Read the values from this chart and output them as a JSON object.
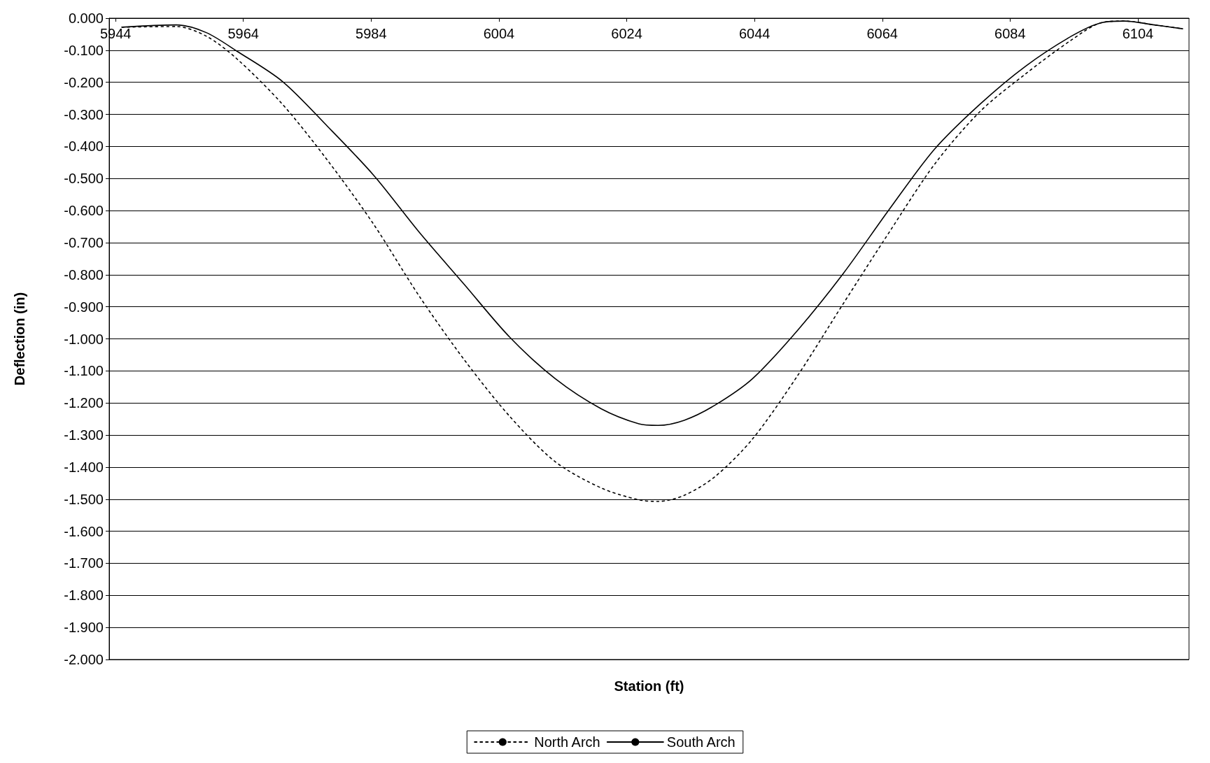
{
  "chart_data": {
    "type": "line",
    "xlabel": "Station (ft)",
    "ylabel": "Deflection (in)",
    "xlim": [
      5943,
      6112
    ],
    "xticks": [
      5944,
      5964,
      5984,
      6004,
      6024,
      6044,
      6064,
      6084,
      6104
    ],
    "ylim": [
      -2.0,
      0.0
    ],
    "yticks": [
      {
        "value": 0,
        "label": "0.000"
      },
      {
        "value": -0.1,
        "label": "-0.100"
      },
      {
        "value": -0.2,
        "label": "-0.200"
      },
      {
        "value": -0.3,
        "label": "-0.300"
      },
      {
        "value": -0.4,
        "label": "-0.400"
      },
      {
        "value": -0.5,
        "label": "-0.500"
      },
      {
        "value": -0.6,
        "label": "-0.600"
      },
      {
        "value": -0.7,
        "label": "-0.700"
      },
      {
        "value": -0.8,
        "label": "-0.800"
      },
      {
        "value": -0.9,
        "label": "-0.900"
      },
      {
        "value": -1.0,
        "label": "-1.000"
      },
      {
        "value": -1.1,
        "label": "-1.100"
      },
      {
        "value": -1.2,
        "label": "-1.200"
      },
      {
        "value": -1.3,
        "label": "-1.300"
      },
      {
        "value": -1.4,
        "label": "-1.400"
      },
      {
        "value": -1.5,
        "label": "-1.500"
      },
      {
        "value": -1.6,
        "label": "-1.600"
      },
      {
        "value": -1.7,
        "label": "-1.700"
      },
      {
        "value": -1.8,
        "label": "-1.800"
      },
      {
        "value": -1.9,
        "label": "-1.900"
      },
      {
        "value": -2.0,
        "label": "-2.000"
      }
    ],
    "grid": "y",
    "legend": "bottom",
    "marker": "none",
    "x": [
      5945,
      5953.5,
      5958.2,
      5963,
      5970.1,
      5977.2,
      5984.4,
      5991.5,
      5998.6,
      6005.7,
      6012.8,
      6020,
      6025.9,
      6028.9,
      6033,
      6037.8,
      6043.7,
      6050.8,
      6057.9,
      6065.1,
      6072.2,
      6079.3,
      6086.4,
      6093.6,
      6098.3,
      6101.9,
      6106.6,
      6111
    ],
    "series": [
      {
        "name": "North Arch",
        "color": "#000000",
        "line_style": "dotted",
        "values": [
          -0.028,
          -0.026,
          -0.056,
          -0.127,
          -0.268,
          -0.444,
          -0.643,
          -0.866,
          -1.066,
          -1.242,
          -1.383,
          -1.465,
          -1.502,
          -1.507,
          -1.488,
          -1.43,
          -1.312,
          -1.113,
          -0.89,
          -0.667,
          -0.455,
          -0.291,
          -0.174,
          -0.068,
          -0.014,
          -0.009,
          -0.021,
          -0.033
        ]
      },
      {
        "name": "South Arch",
        "color": "#000000",
        "line_style": "solid",
        "values": [
          -0.028,
          -0.021,
          -0.045,
          -0.103,
          -0.197,
          -0.338,
          -0.49,
          -0.667,
          -0.831,
          -0.995,
          -1.124,
          -1.218,
          -1.265,
          -1.27,
          -1.254,
          -1.207,
          -1.124,
          -0.972,
          -0.796,
          -0.596,
          -0.408,
          -0.268,
          -0.15,
          -0.056,
          -0.014,
          -0.009,
          -0.021,
          -0.033
        ]
      }
    ]
  }
}
